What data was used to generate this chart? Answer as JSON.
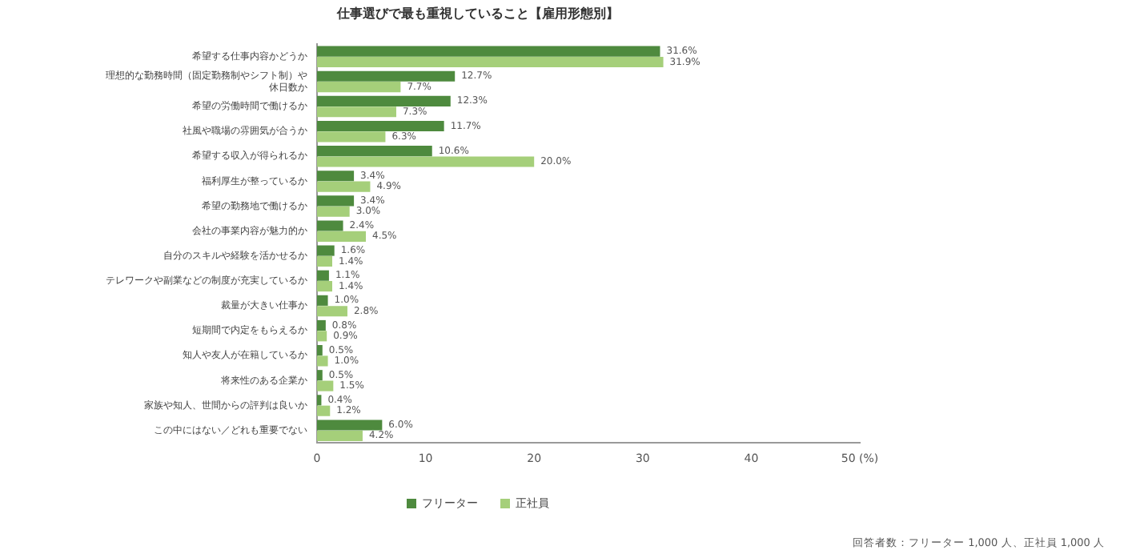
{
  "chart_data": {
    "type": "bar",
    "orientation": "horizontal",
    "title": "仕事選びで最も重視していること【雇用形態別】",
    "categories": [
      "希望する仕事内容かどうか",
      "理想的な勤務時間（固定勤務制やシフト制）や休日数か",
      "希望の労働時間で働けるか",
      "社風や職場の雰囲気が合うか",
      "希望する収入が得られるか",
      "福利厚生が整っているか",
      "希望の勤務地で働けるか",
      "会社の事業内容が魅力的か",
      "自分のスキルや経験を活かせるか",
      "テレワークや副業などの制度が充実しているか",
      "裁量が大きい仕事か",
      "短期間で内定をもらえるか",
      "知人や友人が在籍しているか",
      "将来性のある企業か",
      "家族や知人、世間からの評判は良いか",
      "この中にはない／どれも重要でない"
    ],
    "series": [
      {
        "name": "フリーター",
        "color": "#4e8a3e",
        "values": [
          31.6,
          12.7,
          12.3,
          11.7,
          10.6,
          3.4,
          3.4,
          2.4,
          1.6,
          1.1,
          1.0,
          0.8,
          0.5,
          0.5,
          0.4,
          6.0
        ],
        "value_labels": [
          "31.6%",
          "12.7%",
          "12.3%",
          "11.7%",
          "10.6%",
          "3.4%",
          "3.4%",
          "2.4%",
          "1.6%",
          "1.1%",
          "1.0%",
          "0.8%",
          "0.5%",
          "0.5%",
          "0.4%",
          "6.0%"
        ]
      },
      {
        "name": "正社員",
        "color": "#a5cf7a",
        "values": [
          31.9,
          7.7,
          7.3,
          6.3,
          20.0,
          4.9,
          3.0,
          4.5,
          1.4,
          1.4,
          2.8,
          0.9,
          1.0,
          1.5,
          1.2,
          4.2
        ],
        "value_labels": [
          "31.9%",
          "7.7%",
          "7.3%",
          "6.3%",
          "20.0%",
          "4.9%",
          "3.0%",
          "4.5%",
          "1.4%",
          "1.4%",
          "2.8%",
          "0.9%",
          "1.0%",
          "1.5%",
          "1.2%",
          "4.2%"
        ]
      }
    ],
    "xlim": [
      0,
      50
    ],
    "xticks": [
      0,
      10,
      20,
      30,
      40,
      {
        "value": 50,
        "label": "50 (%)"
      }
    ],
    "grid": false,
    "legend": "bottom",
    "annotations": [
      "回答者数：フリーター 1,000 人、正社員 1,000 人"
    ]
  }
}
